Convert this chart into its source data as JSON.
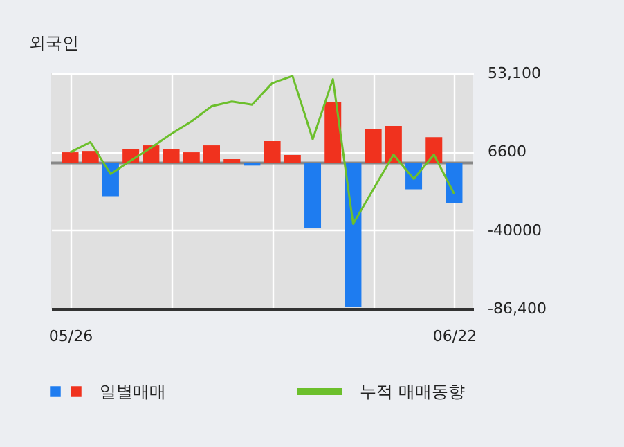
{
  "chart_data": {
    "type": "bar",
    "title": "외국인",
    "categories": [
      "05/26",
      null,
      null,
      null,
      null,
      null,
      null,
      null,
      null,
      null,
      null,
      null,
      null,
      null,
      null,
      null,
      null,
      null,
      null,
      "06/22"
    ],
    "series": [
      {
        "name": "일별매매",
        "values": [
          6300,
          7100,
          -19700,
          8000,
          10400,
          8000,
          6300,
          10400,
          2200,
          -1600,
          12900,
          4700,
          -38600,
          35900,
          -85300,
          20300,
          21900,
          -15600,
          15300,
          -23800
        ],
        "colors": [
          "#f0321e",
          "#f0321e",
          "#1e7cf0",
          "#f0321e",
          "#f0321e",
          "#f0321e",
          "#f0321e",
          "#f0321e",
          "#f0321e",
          "#1e7cf0",
          "#f0321e",
          "#f0321e",
          "#1e7cf0",
          "#f0321e",
          "#1e7cf0",
          "#f0321e",
          "#f0321e",
          "#1e7cf0",
          "#f0321e",
          "#1e7cf0"
        ]
      },
      {
        "name": "누적 매매동향",
        "type": "line",
        "color": "#6cbf2c",
        "values": [
          6300,
          12300,
          -6600,
          1400,
          9000,
          17200,
          24600,
          33600,
          36400,
          34500,
          47300,
          51500,
          14000,
          49600,
          -36100,
          -15600,
          4900,
          -9500,
          4900,
          -18300
        ]
      }
    ],
    "ylim": [
      -86400,
      53100
    ],
    "yticks": [
      {
        "value": 53100,
        "label": "53,100"
      },
      6600,
      -40000,
      {
        "value": -86400,
        "label": "-86,400"
      }
    ],
    "ref_lines": [
      {
        "axis": "y",
        "value": 0,
        "color": "#888888"
      }
    ],
    "grid": true,
    "legend": "bottom",
    "marker": "none",
    "line_style": "solid"
  }
}
